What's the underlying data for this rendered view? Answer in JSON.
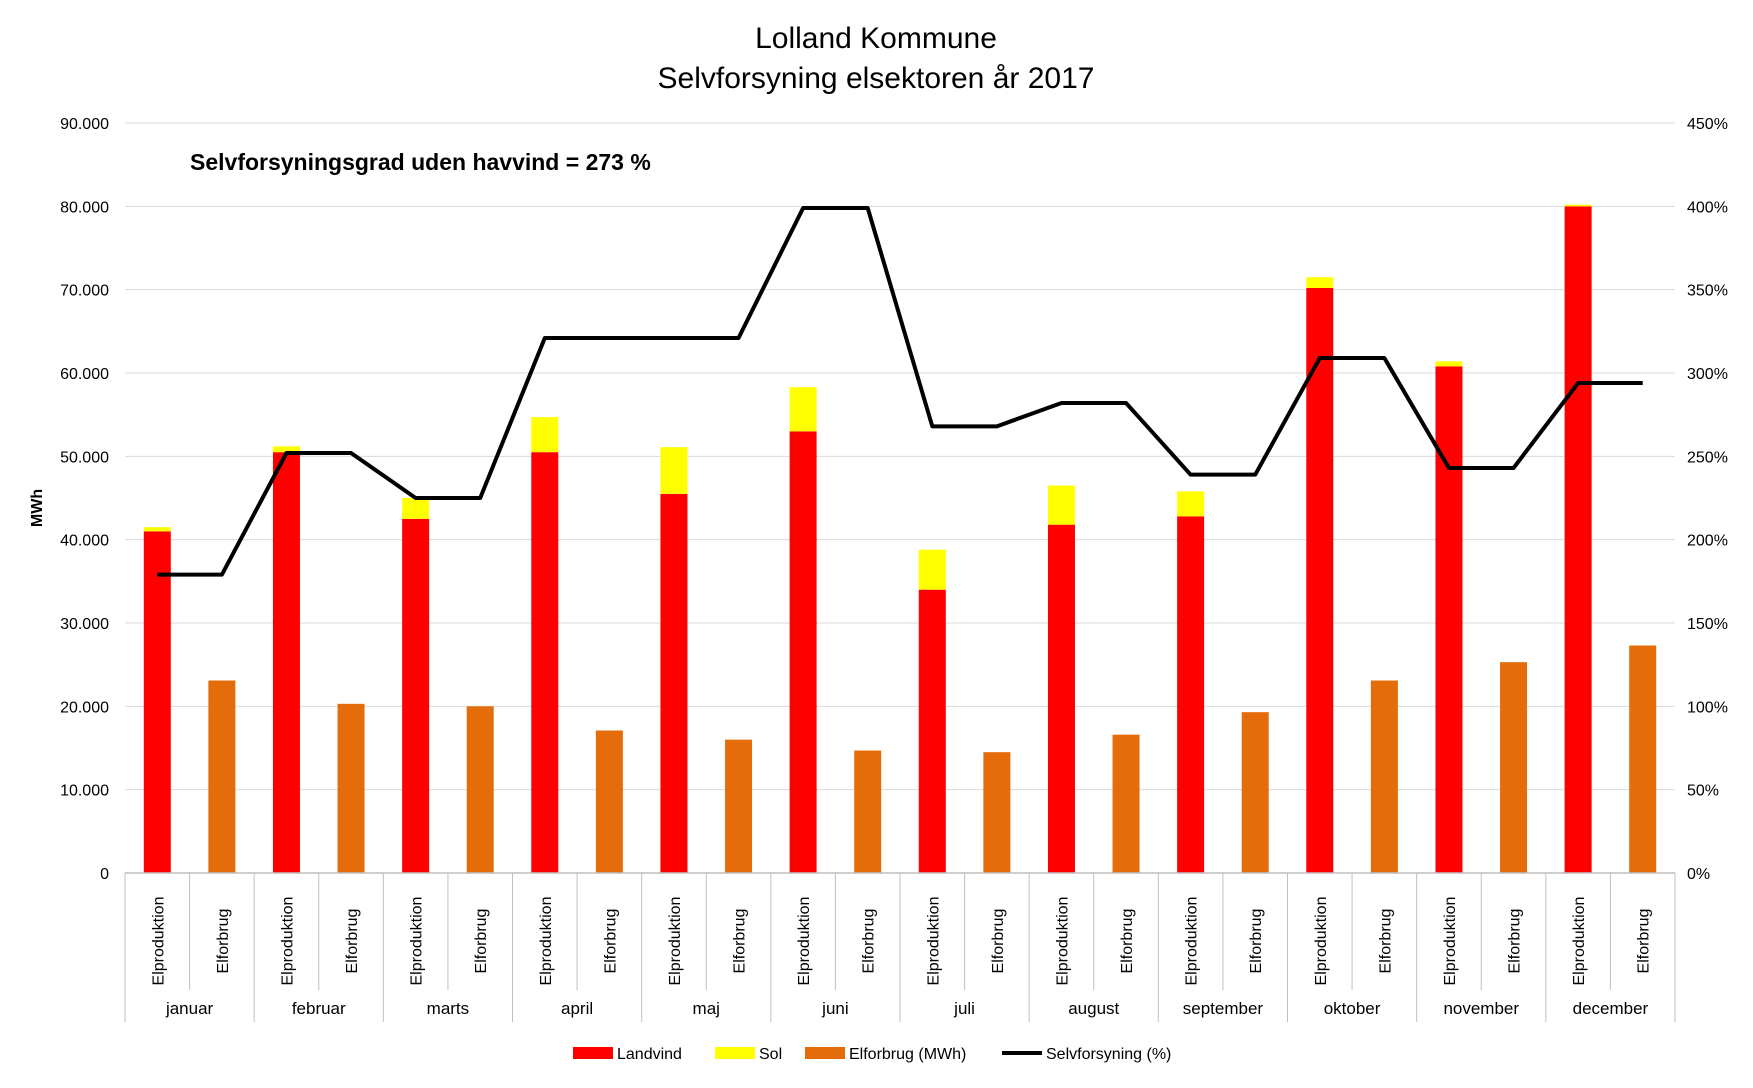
{
  "chart_data": {
    "type": "bar",
    "title": "Lolland Kommune",
    "subtitle": "Selvforsyning elsektoren år 2017",
    "annotation": "Selvforsyningsgrad uden havvind = 273 %",
    "ylabel": "MWh",
    "ylim": [
      0,
      90000
    ],
    "y_ticks": [
      "0",
      "10.000",
      "20.000",
      "30.000",
      "40.000",
      "50.000",
      "60.000",
      "70.000",
      "80.000",
      "90.000"
    ],
    "y2lim": [
      0,
      450
    ],
    "y2_ticks": [
      "0%",
      "50%",
      "100%",
      "150%",
      "200%",
      "250%",
      "300%",
      "350%",
      "400%",
      "450%"
    ],
    "months": [
      "januar",
      "februar",
      "marts",
      "april",
      "maj",
      "juni",
      "juli",
      "august",
      "september",
      "oktober",
      "november",
      "december"
    ],
    "sub_categories": [
      "Elproduktion",
      "Elforbrug"
    ],
    "grid": true,
    "legend_position": "bottom",
    "series": [
      {
        "name": "Landvind",
        "kind": "stacked-bar",
        "bar": "Elproduktion",
        "color": "#FF0000",
        "values": [
          41000,
          50500,
          42500,
          50500,
          45500,
          53000,
          34000,
          41800,
          42800,
          70200,
          60800,
          80000
        ]
      },
      {
        "name": "Sol",
        "kind": "stacked-bar",
        "bar": "Elproduktion",
        "color": "#FFFF00",
        "values": [
          500,
          700,
          2500,
          4200,
          5600,
          5300,
          4800,
          4700,
          3000,
          1300,
          600,
          200
        ]
      },
      {
        "name": "Elforbrug (MWh)",
        "kind": "bar",
        "bar": "Elforbrug",
        "color": "#E46C0A",
        "values": [
          23100,
          20300,
          20000,
          17100,
          16000,
          14700,
          14500,
          16600,
          19300,
          23100,
          25300,
          27300
        ]
      },
      {
        "name": "Selvforsyning (%)",
        "kind": "line",
        "axis": "right",
        "color": "#000000",
        "values": [
          179,
          252,
          225,
          321,
          321,
          399,
          268,
          282,
          239,
          309,
          243,
          294
        ]
      }
    ]
  }
}
